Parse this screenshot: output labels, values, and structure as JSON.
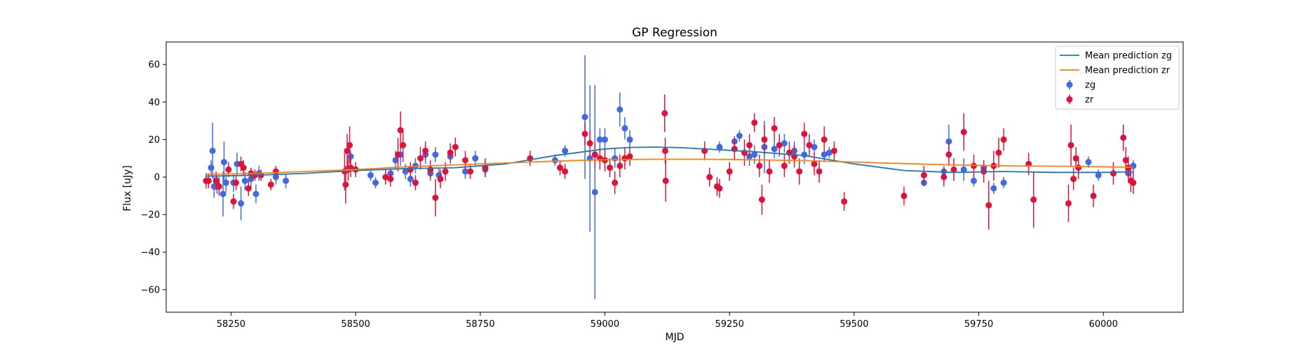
{
  "chart_data": {
    "type": "scatter",
    "title": "GP Regression",
    "xlabel": "MJD",
    "ylabel": "Flux [uJy]",
    "xlim": [
      58120,
      60160
    ],
    "ylim": [
      -72,
      72
    ],
    "xticks": [
      58250,
      58500,
      58750,
      59000,
      59250,
      59500,
      59750,
      60000
    ],
    "yticks": [
      -60,
      -40,
      -20,
      0,
      20,
      40,
      60
    ],
    "grid": false,
    "legend_position": "top-right",
    "legend": [
      {
        "label": "Mean prediction zg",
        "kind": "line",
        "color": "#1f77b4"
      },
      {
        "label": "Mean prediction zr",
        "kind": "line",
        "color": "#ff7f0e"
      },
      {
        "label": "zg",
        "kind": "errorbar",
        "color": "#4169e1"
      },
      {
        "label": "zr",
        "kind": "errorbar",
        "color": "#dc143c"
      }
    ],
    "lines": [
      {
        "name": "Mean prediction zg",
        "color": "#1f77b4",
        "x": [
          58200,
          58300,
          58400,
          58500,
          58600,
          58700,
          58800,
          58900,
          59000,
          59050,
          59100,
          59150,
          59200,
          59300,
          59400,
          59500,
          59600,
          59700,
          59800,
          59900,
          60000,
          60060
        ],
        "y": [
          0.5,
          1.0,
          2.0,
          3.5,
          4.5,
          5.0,
          7.0,
          11.5,
          15.0,
          15.8,
          16.0,
          15.7,
          15.0,
          13.5,
          11.5,
          7.0,
          3.5,
          2.5,
          3.0,
          2.5,
          2.5,
          2.8
        ]
      },
      {
        "name": "Mean prediction zr",
        "color": "#ff7f0e",
        "x": [
          58200,
          58300,
          58400,
          58500,
          58600,
          58700,
          58800,
          58900,
          59000,
          59100,
          59200,
          59300,
          59400,
          59500,
          59600,
          59700,
          59800,
          59900,
          60000,
          60060
        ],
        "y": [
          1.5,
          2.0,
          3.0,
          4.0,
          5.5,
          6.5,
          7.5,
          8.5,
          9.2,
          9.5,
          9.5,
          9.2,
          8.8,
          8.0,
          7.2,
          6.5,
          6.0,
          5.8,
          5.5,
          5.3
        ]
      }
    ],
    "series": [
      {
        "name": "zg",
        "color": "#4169e1",
        "x": [
          58210,
          58213,
          58216,
          58222,
          58234,
          58236,
          58240,
          58255,
          58262,
          58270,
          58278,
          58290,
          58300,
          58306,
          58340,
          58360,
          58490,
          58530,
          58540,
          58570,
          58580,
          58590,
          58600,
          58610,
          58620,
          58640,
          58650,
          58660,
          58667,
          58690,
          58720,
          58740,
          58760,
          58900,
          58920,
          58960,
          58970,
          58980,
          58990,
          59000,
          59020,
          59030,
          59040,
          59050,
          59230,
          59260,
          59270,
          59290,
          59300,
          59320,
          59340,
          59360,
          59380,
          59400,
          59420,
          59440,
          59450,
          59640,
          59680,
          59690,
          59720,
          59740,
          59760,
          59780,
          59800,
          59970,
          59990,
          60050,
          60060
        ],
        "y": [
          5,
          14,
          -5,
          -4,
          -9,
          8,
          -3,
          -3,
          7,
          -14,
          -2,
          -1,
          -9,
          2,
          0,
          -2,
          11,
          1,
          -3,
          2,
          9,
          12,
          3,
          -1,
          6,
          12,
          2,
          12,
          1,
          11,
          3,
          10,
          4,
          9,
          14,
          32,
          10,
          -8,
          20,
          20,
          10,
          36,
          26,
          20,
          16,
          19,
          22,
          11,
          12,
          16,
          15,
          18,
          14,
          12,
          16,
          12,
          13,
          -3,
          3,
          19,
          4,
          -2,
          5,
          -6,
          -3,
          8,
          1,
          2,
          6
        ],
        "err": [
          4,
          15,
          6,
          5,
          12,
          11,
          5,
          5,
          6,
          9,
          5,
          5,
          5,
          4,
          4,
          4,
          3,
          3,
          3,
          3,
          5,
          6,
          4,
          4,
          4,
          5,
          4,
          4,
          4,
          4,
          4,
          4,
          4,
          3,
          3,
          33,
          39,
          57,
          6,
          6,
          5,
          9,
          6,
          5,
          3,
          3,
          3,
          5,
          5,
          14,
          5,
          5,
          5,
          5,
          4,
          4,
          3,
          2,
          3,
          9,
          6,
          3,
          3,
          3,
          3,
          3,
          3,
          3,
          3
        ]
      },
      {
        "name": "zr",
        "color": "#dc143c",
        "x": [
          58200,
          58205,
          58220,
          58226,
          58245,
          58255,
          58260,
          58270,
          58275,
          58285,
          58290,
          58298,
          58310,
          58330,
          58340,
          58478,
          58480,
          58483,
          58485,
          58488,
          58490,
          58500,
          58560,
          58570,
          58585,
          58590,
          58595,
          58610,
          58620,
          58630,
          58640,
          58650,
          58660,
          58670,
          58680,
          58690,
          58700,
          58720,
          58730,
          58760,
          58850,
          58910,
          58920,
          58960,
          58970,
          58980,
          58990,
          59000,
          59010,
          59020,
          59030,
          59040,
          59050,
          59120,
          59121,
          59122,
          59200,
          59210,
          59225,
          59230,
          59250,
          59260,
          59280,
          59290,
          59300,
          59310,
          59315,
          59320,
          59330,
          59340,
          59350,
          59360,
          59370,
          59380,
          59390,
          59400,
          59410,
          59420,
          59430,
          59440,
          59460,
          59480,
          59600,
          59640,
          59680,
          59690,
          59700,
          59720,
          59740,
          59760,
          59770,
          59780,
          59790,
          59800,
          59850,
          59860,
          59930,
          59935,
          59940,
          59945,
          59950,
          59980,
          60020,
          60040,
          60045,
          60050,
          60055,
          60060
        ],
        "y": [
          -2,
          -2,
          -2,
          -5,
          4,
          -13,
          -3,
          7,
          5,
          -6,
          2,
          1,
          1,
          -4,
          3,
          3,
          -4,
          14,
          4,
          17,
          5,
          4,
          0,
          -1,
          12,
          25,
          17,
          4,
          -3,
          10,
          14,
          4,
          -11,
          -1,
          3,
          13,
          16,
          9,
          3,
          5,
          10,
          5,
          3,
          23,
          18,
          12,
          10,
          9,
          5,
          -3,
          6,
          10,
          11,
          34,
          14,
          -2,
          14,
          0,
          -5,
          -6,
          3,
          15,
          13,
          17,
          29,
          6,
          -12,
          20,
          3,
          26,
          17,
          6,
          13,
          11,
          3,
          23,
          17,
          7,
          3,
          20,
          14,
          -13,
          -10,
          1,
          0,
          12,
          4,
          24,
          6,
          3,
          -15,
          6,
          13,
          20,
          7,
          -12,
          -14,
          17,
          -1,
          10,
          5,
          -10,
          2,
          21,
          9,
          5,
          -2,
          -3
        ],
        "err": [
          4,
          4,
          5,
          5,
          4,
          4,
          4,
          4,
          4,
          4,
          3,
          3,
          3,
          3,
          3,
          10,
          10,
          9,
          6,
          10,
          5,
          4,
          4,
          4,
          9,
          10,
          9,
          4,
          4,
          6,
          5,
          5,
          10,
          5,
          5,
          5,
          5,
          5,
          4,
          5,
          4,
          4,
          4,
          6,
          7,
          7,
          6,
          6,
          5,
          6,
          6,
          6,
          5,
          10,
          7,
          11,
          5,
          5,
          5,
          5,
          5,
          6,
          7,
          6,
          5,
          6,
          8,
          8,
          6,
          6,
          6,
          6,
          6,
          6,
          7,
          6,
          6,
          6,
          6,
          7,
          5,
          5,
          5,
          5,
          5,
          6,
          6,
          10,
          6,
          6,
          13,
          8,
          8,
          6,
          6,
          15,
          10,
          11,
          6,
          6,
          6,
          6,
          6,
          7,
          7,
          6,
          6,
          6
        ]
      }
    ]
  }
}
